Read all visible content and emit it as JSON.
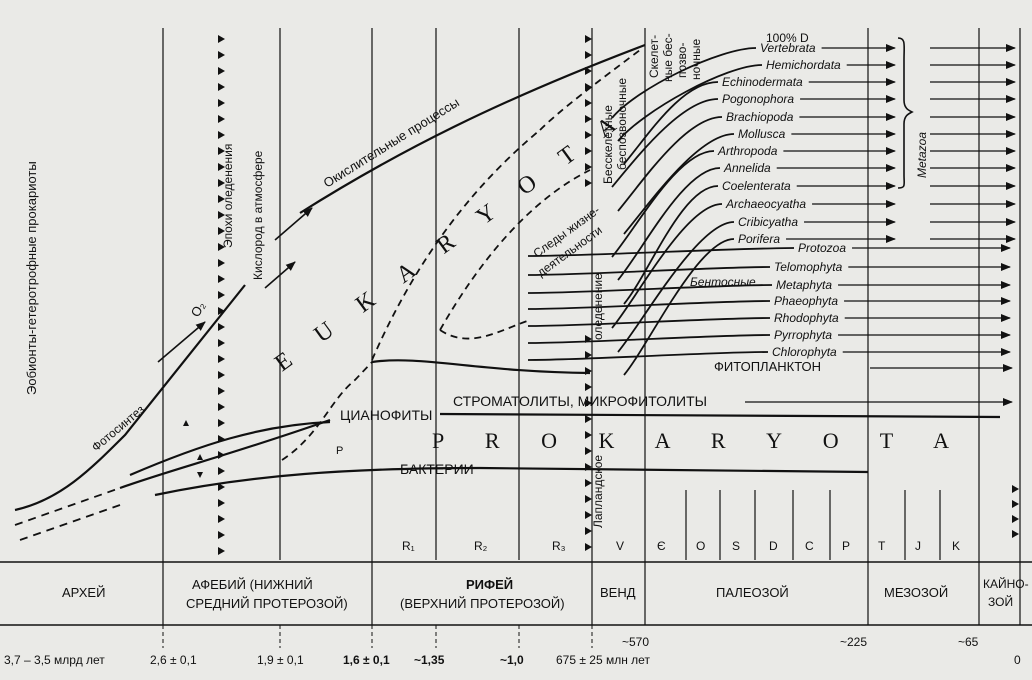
{
  "left_label": "Эобионты-гетеротрофные прокариоты",
  "photosynthesis": "Фотосинтез",
  "o2": "O₂",
  "oxygen": "Кислород в атмосфере",
  "glaciations": "Эпохи оледенения",
  "oxidative": "Окислительные процессы",
  "eukaryota": "E U K A R Y O T A",
  "prokaryota": "P R O K A R Y O T A",
  "cyanophytes": "ЦИАНОФИТЫ",
  "bacteria": "БАКТЕРИИ",
  "p_small": "P",
  "stromatolites": "СТРОМАТОЛИТЫ, МИКРОФИТОЛИТЫ",
  "phytoplankton": "ФИТОПЛАНКТОН",
  "traces": "Следы жизне-",
  "traces2": "деятельности",
  "benthic": "Бентосные",
  "lapland": "Лапландское",
  "glaciation": "оледенение",
  "skeletonless1": "Бесскелетные",
  "skeletonless2": "беспозвоночные",
  "skel1": "Скелет-",
  "skel2": "ные бес-",
  "skel3": "позво-",
  "skel4": "ночные",
  "percent": "100% D",
  "metazoa": "Metazoa",
  "taxa": [
    "Vertebrata",
    "Hemichordata",
    "Echinodermata",
    "Pogonophora",
    "Brachiopoda",
    "Mollusca",
    "Arthropoda",
    "Annelida",
    "Coelenterata",
    "Archaeocyatha",
    "Cribicyatha",
    "Porifera",
    "Protozoa",
    "Telomophyta",
    "Metaphyta",
    "Phaeophyta",
    "Rhodophyta",
    "Pyrrophyta",
    "Chlorophyta"
  ],
  "periods": [
    "R₁",
    "R₂",
    "R₃",
    "V",
    "Є",
    "O",
    "S",
    "D",
    "C",
    "P",
    "T",
    "J",
    "K"
  ],
  "eras": {
    "archean": "АРХЕЙ",
    "aphebian1": "АФЕБИЙ (НИЖНИЙ",
    "aphebian2": "СРЕДНИЙ ПРОТЕРОЗОЙ)",
    "riphean1": "РИФЕЙ",
    "riphean2": "(ВЕРХНИЙ ПРОТЕРОЗОЙ)",
    "vendian": "ВЕНД",
    "paleozoic": "ПАЛЕОЗОЙ",
    "mesozoic": "МЕЗОЗОЙ",
    "cenozoic1": "КАЙНО-",
    "cenozoic2": "ЗОЙ"
  },
  "ages": [
    "3,7 – 3,5 млрд лет",
    "2,6 ± 0,1",
    "1,9 ± 0,1",
    "1,6 ± 0,1",
    "~1,35",
    "~1,0",
    "675 ± 25 млн лет",
    "~570",
    "~225",
    "~65",
    "0"
  ]
}
